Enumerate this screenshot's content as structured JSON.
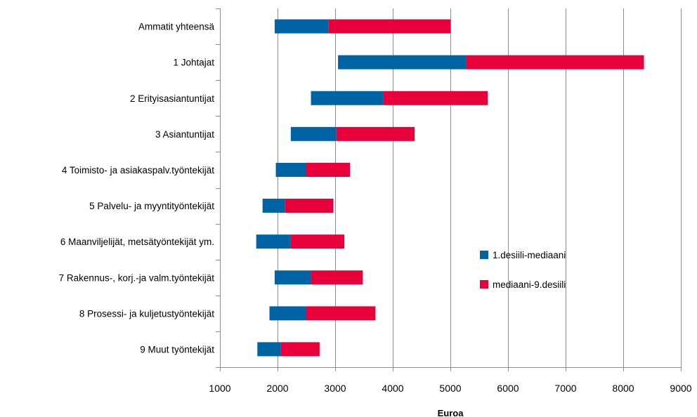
{
  "chart_data": {
    "type": "bar",
    "orientation": "horizontal",
    "stacked": true,
    "title": "",
    "xlabel": "Euroa",
    "ylabel": "",
    "xlim": [
      1000,
      9000
    ],
    "xticks": [
      1000,
      2000,
      3000,
      4000,
      5000,
      6000,
      7000,
      8000,
      9000
    ],
    "grid": "vertical",
    "legend_position": "right-center",
    "categories": [
      "Ammatit yhteensä",
      "1 Johtajat",
      "2 Erityisasiantuntijat",
      "3 Asiantuntijat",
      "4 Toimisto- ja asiakaspalv.työntekijät",
      "5 Palvelu- ja myyntityöntekijät",
      "6 Maanviljelijät, metsätyöntekijät ym.",
      "7 Rakennus-, korj.-ja valm.työntekijät",
      "8 Prosessi- ja kuljetustyöntekijät",
      "9 Muut työntekijät"
    ],
    "decile_1": [
      1950,
      3050,
      2580,
      2230,
      1970,
      1740,
      1630,
      1950,
      1860,
      1650
    ],
    "median": [
      2880,
      5280,
      3840,
      3020,
      2500,
      2130,
      2230,
      2580,
      2500,
      2050
    ],
    "decile_9": [
      5000,
      8360,
      5650,
      4380,
      3260,
      2970,
      3160,
      3480,
      3700,
      2730
    ],
    "series": [
      {
        "name": "1.desiili-mediaani",
        "color": "#0063a4"
      },
      {
        "name": "mediaani-9.desiili",
        "color": "#e8003a"
      }
    ]
  }
}
